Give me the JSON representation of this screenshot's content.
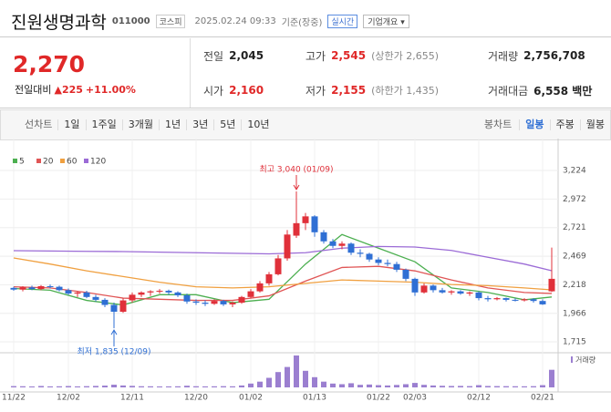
{
  "header": {
    "name": "진원생명과학",
    "code": "011000",
    "market": "코스피",
    "datetime": "2025.02.24 09:33",
    "basis": "기준(장중)",
    "realtime": "실시간",
    "company": "기업개요"
  },
  "quote": {
    "price": "2,270",
    "change_label": "전일대비",
    "change": "225",
    "change_pct": "+11.00%",
    "items": [
      {
        "label": "전일",
        "value": "2,045"
      },
      {
        "label": "고가",
        "value": "2,545",
        "extra": "(상한가 2,655)"
      },
      {
        "label": "거래량",
        "value": "2,756,708"
      },
      {
        "label": "시가",
        "value": "2,160"
      },
      {
        "label": "저가",
        "value": "2,155",
        "extra": "(하한가 1,435)"
      },
      {
        "label": "거래대금",
        "value": "6,558 백만"
      }
    ]
  },
  "tabs": {
    "line_label": "선차트",
    "line": [
      "1일",
      "1주일",
      "3개월",
      "1년",
      "3년",
      "5년",
      "10년"
    ],
    "candle_label": "봉차트",
    "candle": [
      "일봉",
      "주봉",
      "월봉"
    ],
    "selected": "일봉"
  },
  "chart_data": {
    "type": "candlestick",
    "up_color": "#e0303a",
    "down_color": "#2f6fd4",
    "categories": [
      "11/22",
      null,
      null,
      null,
      null,
      null,
      "12/02",
      null,
      null,
      null,
      null,
      null,
      null,
      "12/11",
      null,
      null,
      null,
      null,
      null,
      null,
      "12/20",
      null,
      null,
      null,
      null,
      null,
      "01/02",
      null,
      null,
      null,
      null,
      null,
      null,
      "01/13",
      null,
      null,
      null,
      null,
      null,
      null,
      "01/22",
      null,
      null,
      null,
      "02/03",
      null,
      null,
      null,
      null,
      null,
      null,
      "02/12",
      null,
      null,
      null,
      null,
      null,
      null,
      "02/21",
      null
    ],
    "ohlc": [
      [
        2190,
        2200,
        2165,
        2175
      ],
      [
        2175,
        2205,
        2160,
        2195
      ],
      [
        2195,
        2210,
        2170,
        2180
      ],
      [
        2180,
        2215,
        2170,
        2205
      ],
      [
        2205,
        2220,
        2185,
        2200
      ],
      [
        2200,
        2210,
        2160,
        2170
      ],
      [
        2170,
        2185,
        2130,
        2140
      ],
      [
        2140,
        2160,
        2110,
        2150
      ],
      [
        2150,
        2165,
        2100,
        2110
      ],
      [
        2110,
        2130,
        2070,
        2085
      ],
      [
        2085,
        2100,
        2020,
        2040
      ],
      [
        2040,
        2060,
        1835,
        1980
      ],
      [
        1980,
        2100,
        1970,
        2080
      ],
      [
        2080,
        2150,
        2060,
        2130
      ],
      [
        2130,
        2160,
        2110,
        2150
      ],
      [
        2150,
        2170,
        2120,
        2160
      ],
      [
        2160,
        2180,
        2140,
        2165
      ],
      [
        2165,
        2175,
        2130,
        2150
      ],
      [
        2150,
        2160,
        2110,
        2125
      ],
      [
        2125,
        2140,
        2050,
        2070
      ],
      [
        2070,
        2090,
        2040,
        2060
      ],
      [
        2060,
        2080,
        2030,
        2050
      ],
      [
        2050,
        2090,
        2040,
        2075
      ],
      [
        2075,
        2085,
        2030,
        2045
      ],
      [
        2045,
        2070,
        2020,
        2060
      ],
      [
        2060,
        2120,
        2050,
        2110
      ],
      [
        2110,
        2180,
        2100,
        2160
      ],
      [
        2160,
        2250,
        2150,
        2230
      ],
      [
        2230,
        2330,
        2210,
        2310
      ],
      [
        2310,
        2480,
        2300,
        2450
      ],
      [
        2450,
        2700,
        2430,
        2660
      ],
      [
        2650,
        3040,
        2630,
        2760
      ],
      [
        2760,
        2850,
        2700,
        2820
      ],
      [
        2820,
        2830,
        2640,
        2680
      ],
      [
        2680,
        2700,
        2580,
        2600
      ],
      [
        2600,
        2620,
        2540,
        2560
      ],
      [
        2560,
        2600,
        2530,
        2580
      ],
      [
        2580,
        2590,
        2480,
        2500
      ],
      [
        2500,
        2530,
        2460,
        2490
      ],
      [
        2490,
        2500,
        2420,
        2440
      ],
      [
        2440,
        2460,
        2390,
        2410
      ],
      [
        2410,
        2440,
        2380,
        2400
      ],
      [
        2400,
        2420,
        2330,
        2350
      ],
      [
        2350,
        2360,
        2250,
        2270
      ],
      [
        2270,
        2280,
        2120,
        2150
      ],
      [
        2150,
        2230,
        2140,
        2210
      ],
      [
        2210,
        2220,
        2150,
        2170
      ],
      [
        2170,
        2190,
        2140,
        2150
      ],
      [
        2150,
        2170,
        2130,
        2160
      ],
      [
        2160,
        2170,
        2130,
        2140
      ],
      [
        2140,
        2160,
        2120,
        2150
      ],
      [
        2150,
        2160,
        2080,
        2100
      ],
      [
        2100,
        2120,
        2070,
        2090
      ],
      [
        2090,
        2110,
        2080,
        2100
      ],
      [
        2100,
        2105,
        2070,
        2085
      ],
      [
        2085,
        2100,
        2070,
        2080
      ],
      [
        2080,
        2100,
        2070,
        2090
      ],
      [
        2090,
        2100,
        2060,
        2075
      ],
      [
        2075,
        2090,
        2040,
        2045
      ],
      [
        2160,
        2545,
        2155,
        2270
      ]
    ],
    "volume": [
      200000,
      180000,
      150000,
      220000,
      160000,
      170000,
      210000,
      160000,
      190000,
      230000,
      280000,
      420000,
      300000,
      240000,
      180000,
      170000,
      150000,
      160000,
      170000,
      260000,
      180000,
      160000,
      170000,
      190000,
      170000,
      300000,
      600000,
      900000,
      1500000,
      2400000,
      3200000,
      5000000,
      2600000,
      1600000,
      900000,
      600000,
      500000,
      650000,
      400000,
      450000,
      350000,
      300000,
      380000,
      500000,
      700000,
      400000,
      300000,
      250000,
      220000,
      230000,
      200000,
      350000,
      220000,
      200000,
      190000,
      180000,
      170000,
      190000,
      350000,
      2756708
    ],
    "volume_label": "거래량",
    "ylim": [
      1635,
      3441
    ],
    "yticks": [
      {
        "value": 3224,
        "label": "3,224"
      },
      {
        "value": 2972,
        "label": "2,972"
      },
      {
        "value": 2721,
        "label": "2,721"
      },
      {
        "value": 2469,
        "label": "2,469"
      },
      {
        "value": 2218,
        "label": "2,218"
      },
      {
        "value": 1966,
        "label": "1,966"
      },
      {
        "value": 1715,
        "label": "1,715"
      }
    ],
    "ma_lines": [
      {
        "name": "5",
        "color": "#4caf50",
        "x": [
          0,
          4,
          8,
          12,
          16,
          20,
          24,
          28,
          32,
          36,
          40,
          44,
          48,
          52,
          56,
          59
        ],
        "values": [
          2185,
          2170,
          2080,
          2040,
          2130,
          2130,
          2060,
          2090,
          2400,
          2660,
          2540,
          2420,
          2190,
          2150,
          2085,
          2110
        ]
      },
      {
        "name": "20",
        "color": "#e05555",
        "x": [
          0,
          4,
          8,
          12,
          16,
          20,
          24,
          28,
          32,
          36,
          40,
          44,
          48,
          52,
          56,
          59
        ],
        "values": [
          2200,
          2190,
          2150,
          2100,
          2090,
          2080,
          2080,
          2120,
          2250,
          2370,
          2380,
          2340,
          2260,
          2190,
          2150,
          2141
        ]
      },
      {
        "name": "60",
        "color": "#f0a040",
        "x": [
          0,
          4,
          8,
          12,
          16,
          20,
          24,
          28,
          32,
          36,
          40,
          44,
          48,
          52,
          56,
          59
        ],
        "values": [
          2454,
          2400,
          2340,
          2290,
          2240,
          2200,
          2190,
          2200,
          2230,
          2260,
          2250,
          2240,
          2220,
          2210,
          2190,
          2173
        ]
      },
      {
        "name": "120",
        "color": "#9b6bd6",
        "x": [
          0,
          4,
          8,
          12,
          16,
          20,
          24,
          28,
          32,
          36,
          40,
          44,
          48,
          52,
          56,
          59
        ],
        "values": [
          2518,
          2515,
          2512,
          2510,
          2505,
          2500,
          2495,
          2490,
          2500,
          2540,
          2555,
          2550,
          2520,
          2460,
          2400,
          2341
        ]
      }
    ],
    "annotations": [
      {
        "text": "최고 3,040 (01/09)",
        "index": 31,
        "value": 3040
      },
      {
        "text": "최저 1,835 (12/09)",
        "index": 11,
        "value": 1835
      }
    ]
  }
}
